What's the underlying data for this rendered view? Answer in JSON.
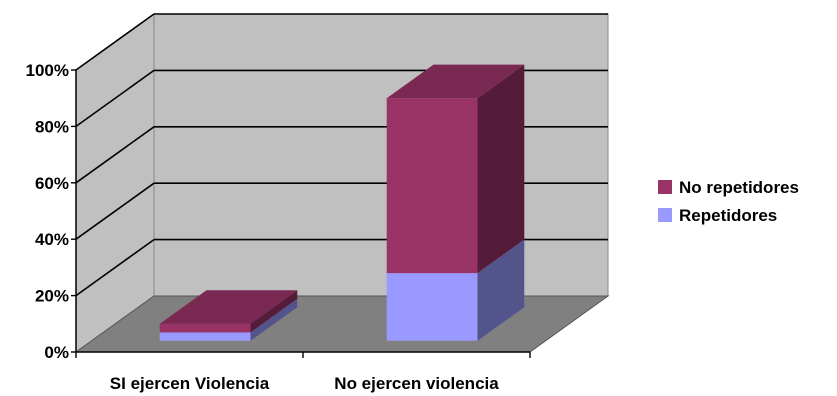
{
  "chart_data": {
    "type": "bar",
    "stacked": true,
    "three_d": true,
    "categories": [
      "SI ejercen Violencia",
      "No ejercen violencia"
    ],
    "series": [
      {
        "name": "Repetidores",
        "values": [
          3,
          24
        ],
        "color": "#9999ff"
      },
      {
        "name": "No repetidores",
        "values": [
          3,
          62
        ],
        "color": "#993366"
      }
    ],
    "y_ticks": [
      "0%",
      "20%",
      "40%",
      "60%",
      "80%",
      "100%"
    ],
    "ylim": [
      0,
      100
    ],
    "grid": true,
    "legend_position": "right",
    "colors": {
      "back_wall": "#c0c0c0",
      "floor": "#808080"
    }
  }
}
